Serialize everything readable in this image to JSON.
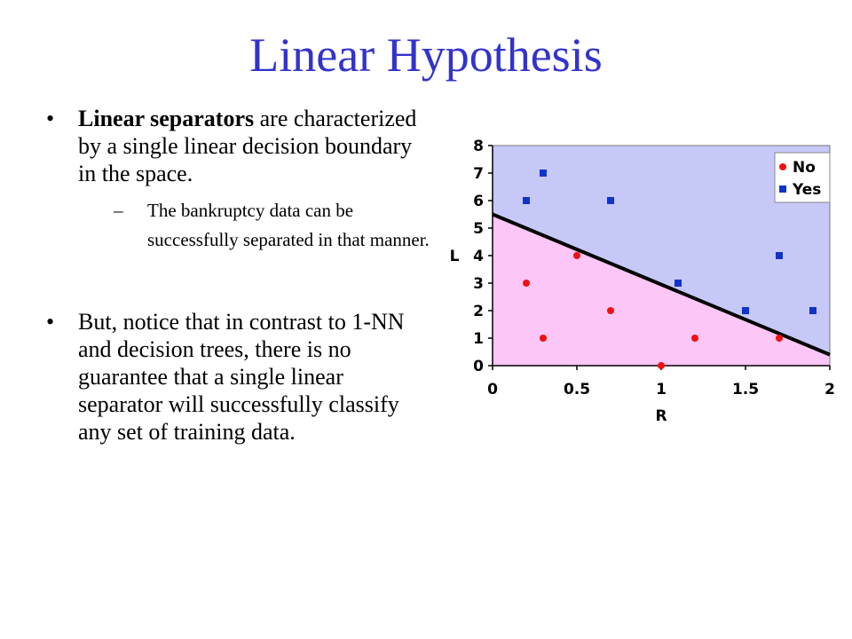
{
  "slide": {
    "title": "Linear Hypothesis",
    "bullets": [
      {
        "bold": "Linear separators",
        "text": " are characterized by a single linear decision boundary in the space.",
        "sub": "The bankruptcy data can be successfully separated in that manner."
      },
      {
        "bold": "",
        "text": "But, notice that in contrast to 1-NN and decision trees, there is no guarantee that a single linear separator will successfully classify any set of training data."
      }
    ],
    "bullet_glyph": "•",
    "sub_glyph": "–"
  },
  "chart_data": {
    "type": "scatter",
    "xlabel": "R",
    "ylabel": "L",
    "xlim": [
      0,
      2
    ],
    "ylim": [
      0,
      8
    ],
    "x_ticks": [
      "0",
      "0.5",
      "1",
      "1.5",
      "2"
    ],
    "y_ticks": [
      "0",
      "1",
      "2",
      "3",
      "4",
      "5",
      "6",
      "7",
      "8"
    ],
    "legend_position": "top-right",
    "series": [
      {
        "name": "No",
        "color": "#ee1111",
        "marker": "circle",
        "points": [
          [
            0.2,
            3
          ],
          [
            0.3,
            1
          ],
          [
            0.5,
            4
          ],
          [
            0.7,
            2
          ],
          [
            1.0,
            0
          ],
          [
            1.2,
            1
          ],
          [
            1.7,
            1
          ]
        ]
      },
      {
        "name": "Yes",
        "color": "#1133cc",
        "marker": "square",
        "points": [
          [
            0.2,
            6
          ],
          [
            0.3,
            7
          ],
          [
            0.7,
            6
          ],
          [
            1.1,
            3
          ],
          [
            1.5,
            2
          ],
          [
            1.7,
            4
          ],
          [
            1.9,
            2
          ]
        ]
      }
    ],
    "boundary": {
      "x": [
        0,
        2
      ],
      "y": [
        5.5,
        0.4
      ],
      "color": "#000000"
    },
    "region_colors": {
      "above": "#c6c8f8",
      "below": "#fcc6f6"
    }
  }
}
